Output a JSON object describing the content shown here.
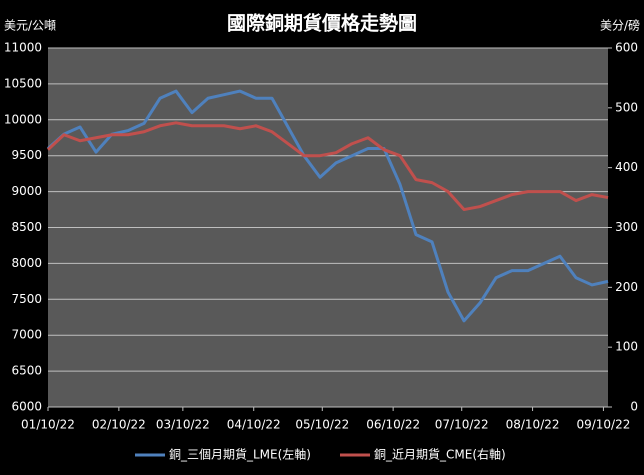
{
  "chart_data": {
    "type": "line",
    "title": "國際銅期貨價格走勢圖",
    "y_label": "美元/公噸",
    "y2_label": "美分/磅",
    "x": [
      "2022-01-10",
      "2022-01-17",
      "2022-01-24",
      "2022-01-31",
      "2022-02-07",
      "2022-02-14",
      "2022-02-21",
      "2022-02-28",
      "2022-03-07",
      "2022-03-14",
      "2022-03-21",
      "2022-03-28",
      "2022-04-04",
      "2022-04-11",
      "2022-04-18",
      "2022-04-25",
      "2022-05-02",
      "2022-05-09",
      "2022-05-16",
      "2022-05-23",
      "2022-05-30",
      "2022-06-06",
      "2022-06-13",
      "2022-06-20",
      "2022-06-27",
      "2022-07-04",
      "2022-07-11",
      "2022-07-18",
      "2022-07-25",
      "2022-08-01",
      "2022-08-08",
      "2022-08-15",
      "2022-08-22",
      "2022-08-29",
      "2022-09-05",
      "2022-09-12"
    ],
    "series": [
      {
        "name": "銅_三個月期貨_LME(左軸)",
        "color": "#4f81bd",
        "axis": "y",
        "values": [
          9600,
          9800,
          9900,
          9550,
          9800,
          9850,
          9950,
          10300,
          10400,
          10100,
          10300,
          10350,
          10400,
          10300,
          10300,
          9900,
          9500,
          9200,
          9400,
          9500,
          9600,
          9600,
          9100,
          8400,
          8300,
          7600,
          7200,
          7450,
          7800,
          7900,
          7900,
          8000,
          8100,
          7800,
          7700,
          7750
        ]
      },
      {
        "name": "銅_近月期貨_CME(右軸)",
        "color": "#c0504d",
        "axis": "y2",
        "values": [
          430,
          455,
          445,
          450,
          455,
          455,
          460,
          470,
          475,
          470,
          470,
          470,
          465,
          470,
          460,
          440,
          420,
          420,
          425,
          440,
          450,
          430,
          420,
          380,
          375,
          360,
          330,
          335,
          345,
          355,
          360,
          360,
          360,
          345,
          355,
          350
        ]
      }
    ],
    "xlim": [
      "2022-01-10",
      "2022-09-12"
    ],
    "xticks": [
      {
        "value": "2022-01-10",
        "label": "01/10/22"
      },
      {
        "value": "2022-02-10",
        "label": "02/10/22"
      },
      {
        "value": "2022-03-10",
        "label": "03/10/22"
      },
      {
        "value": "2022-04-10",
        "label": "04/10/22"
      },
      {
        "value": "2022-05-10",
        "label": "05/10/22"
      },
      {
        "value": "2022-06-10",
        "label": "06/10/22"
      },
      {
        "value": "2022-07-10",
        "label": "07/10/22"
      },
      {
        "value": "2022-08-10",
        "label": "08/10/22"
      },
      {
        "value": "2022-09-10",
        "label": "09/10/22"
      }
    ],
    "ylim": [
      6000,
      11000
    ],
    "yticks": [
      6000,
      6500,
      7000,
      7500,
      8000,
      8500,
      9000,
      9500,
      10000,
      10500,
      11000
    ],
    "y2lim": [
      0,
      600
    ],
    "y2ticks": [
      0,
      100,
      200,
      300,
      400,
      500,
      600
    ],
    "grid": true
  }
}
